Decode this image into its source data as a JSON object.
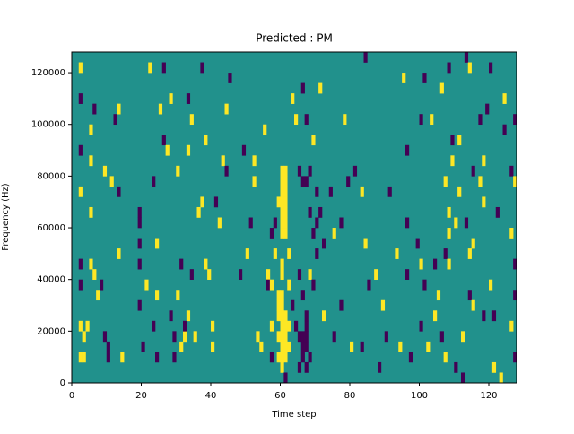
{
  "chart_data": {
    "type": "heatmap",
    "title": "Predicted : PM",
    "x_label": "Time step",
    "y_label": "Frequency (Hz)",
    "xlim": [
      0,
      128
    ],
    "ylim": [
      0,
      128000
    ],
    "xticks": [
      0,
      20,
      40,
      60,
      80,
      100,
      120
    ],
    "yticks": [
      0,
      20000,
      40000,
      60000,
      80000,
      100000,
      120000
    ],
    "clim": [
      -1,
      1
    ],
    "cmap": [
      "#440154",
      "#21918c",
      "#fde725"
    ],
    "background": 0,
    "cell_width": 1,
    "cell_height": 4000,
    "cells": [
      [
        2,
        120000,
        1
      ],
      [
        2,
        108000,
        -1
      ],
      [
        2,
        88000,
        -1
      ],
      [
        2,
        72000,
        1
      ],
      [
        2,
        44000,
        -1
      ],
      [
        2,
        36000,
        -1
      ],
      [
        2,
        20000,
        1
      ],
      [
        2,
        8000,
        1
      ],
      [
        3,
        8000,
        1
      ],
      [
        3,
        16000,
        1
      ],
      [
        4,
        20000,
        1
      ],
      [
        5,
        44000,
        1
      ],
      [
        5,
        84000,
        1
      ],
      [
        5,
        64000,
        1
      ],
      [
        5,
        96000,
        1
      ],
      [
        6,
        104000,
        -1
      ],
      [
        6,
        40000,
        1
      ],
      [
        7,
        32000,
        1
      ],
      [
        8,
        36000,
        -1
      ],
      [
        9,
        16000,
        -1
      ],
      [
        9,
        80000,
        1
      ],
      [
        10,
        8000,
        -1
      ],
      [
        10,
        12000,
        -1
      ],
      [
        11,
        76000,
        1
      ],
      [
        12,
        100000,
        -1
      ],
      [
        13,
        104000,
        1
      ],
      [
        13,
        72000,
        -1
      ],
      [
        13,
        48000,
        1
      ],
      [
        14,
        8000,
        1
      ],
      [
        19,
        64000,
        -1
      ],
      [
        19,
        60000,
        -1
      ],
      [
        19,
        52000,
        -1
      ],
      [
        19,
        44000,
        -1
      ],
      [
        19,
        28000,
        -1
      ],
      [
        20,
        12000,
        -1
      ],
      [
        21,
        36000,
        1
      ],
      [
        22,
        120000,
        1
      ],
      [
        23,
        20000,
        -1
      ],
      [
        23,
        76000,
        -1
      ],
      [
        24,
        52000,
        1
      ],
      [
        24,
        32000,
        1
      ],
      [
        24,
        8000,
        -1
      ],
      [
        25,
        104000,
        1
      ],
      [
        26,
        120000,
        -1
      ],
      [
        26,
        92000,
        -1
      ],
      [
        27,
        88000,
        1
      ],
      [
        28,
        24000,
        -1
      ],
      [
        28,
        108000,
        1
      ],
      [
        29,
        16000,
        -1
      ],
      [
        29,
        8000,
        -1
      ],
      [
        30,
        32000,
        1
      ],
      [
        30,
        80000,
        1
      ],
      [
        31,
        44000,
        -1
      ],
      [
        31,
        12000,
        1
      ],
      [
        32,
        16000,
        1
      ],
      [
        32,
        20000,
        -1
      ],
      [
        33,
        108000,
        -1
      ],
      [
        33,
        88000,
        1
      ],
      [
        33,
        24000,
        1
      ],
      [
        34,
        40000,
        -1
      ],
      [
        34,
        100000,
        1
      ],
      [
        35,
        16000,
        1
      ],
      [
        36,
        64000,
        1
      ],
      [
        37,
        68000,
        1
      ],
      [
        37,
        120000,
        -1
      ],
      [
        38,
        92000,
        1
      ],
      [
        38,
        44000,
        1
      ],
      [
        39,
        40000,
        1
      ],
      [
        40,
        20000,
        1
      ],
      [
        40,
        12000,
        1
      ],
      [
        41,
        68000,
        -1
      ],
      [
        42,
        60000,
        1
      ],
      [
        43,
        84000,
        1
      ],
      [
        44,
        80000,
        -1
      ],
      [
        44,
        104000,
        1
      ],
      [
        45,
        116000,
        -1
      ],
      [
        48,
        40000,
        -1
      ],
      [
        49,
        88000,
        -1
      ],
      [
        50,
        48000,
        1
      ],
      [
        51,
        60000,
        -1
      ],
      [
        52,
        84000,
        1
      ],
      [
        52,
        76000,
        1
      ],
      [
        53,
        16000,
        1
      ],
      [
        54,
        12000,
        1
      ],
      [
        55,
        96000,
        1
      ],
      [
        56,
        40000,
        1
      ],
      [
        56,
        36000,
        -1
      ],
      [
        57,
        8000,
        -1
      ],
      [
        57,
        56000,
        -1
      ],
      [
        57,
        36000,
        1
      ],
      [
        57,
        20000,
        1
      ],
      [
        58,
        60000,
        -1
      ],
      [
        58,
        48000,
        1
      ],
      [
        59,
        16000,
        1
      ],
      [
        59,
        8000,
        1
      ],
      [
        59,
        24000,
        1
      ],
      [
        59,
        28000,
        1
      ],
      [
        59,
        32000,
        1
      ],
      [
        59,
        68000,
        1
      ],
      [
        60,
        4000,
        1
      ],
      [
        60,
        8000,
        1
      ],
      [
        60,
        12000,
        1
      ],
      [
        60,
        16000,
        1
      ],
      [
        60,
        20000,
        1
      ],
      [
        60,
        24000,
        1
      ],
      [
        60,
        28000,
        1
      ],
      [
        60,
        32000,
        1
      ],
      [
        60,
        40000,
        1
      ],
      [
        60,
        44000,
        1
      ],
      [
        60,
        56000,
        1
      ],
      [
        60,
        60000,
        1
      ],
      [
        60,
        64000,
        1
      ],
      [
        60,
        68000,
        1
      ],
      [
        60,
        72000,
        1
      ],
      [
        60,
        76000,
        1
      ],
      [
        60,
        80000,
        1
      ],
      [
        61,
        0,
        -1
      ],
      [
        61,
        8000,
        1
      ],
      [
        61,
        12000,
        1
      ],
      [
        61,
        16000,
        1
      ],
      [
        61,
        20000,
        1
      ],
      [
        61,
        24000,
        1
      ],
      [
        61,
        56000,
        1
      ],
      [
        61,
        60000,
        1
      ],
      [
        61,
        64000,
        1
      ],
      [
        61,
        68000,
        1
      ],
      [
        61,
        72000,
        1
      ],
      [
        61,
        76000,
        1
      ],
      [
        61,
        80000,
        1
      ],
      [
        62,
        12000,
        1
      ],
      [
        62,
        20000,
        1
      ],
      [
        62,
        48000,
        1
      ],
      [
        62,
        36000,
        1
      ],
      [
        63,
        108000,
        1
      ],
      [
        63,
        28000,
        -1
      ],
      [
        64,
        100000,
        1
      ],
      [
        64,
        20000,
        -1
      ],
      [
        65,
        16000,
        -1
      ],
      [
        65,
        4000,
        -1
      ],
      [
        65,
        40000,
        -1
      ],
      [
        65,
        80000,
        -1
      ],
      [
        66,
        12000,
        -1
      ],
      [
        66,
        8000,
        -1
      ],
      [
        66,
        16000,
        -1
      ],
      [
        66,
        32000,
        -1
      ],
      [
        66,
        76000,
        -1
      ],
      [
        66,
        112000,
        -1
      ],
      [
        67,
        4000,
        -1
      ],
      [
        67,
        12000,
        -1
      ],
      [
        67,
        16000,
        -1
      ],
      [
        67,
        20000,
        -1
      ],
      [
        67,
        24000,
        -1
      ],
      [
        67,
        76000,
        -1
      ],
      [
        67,
        100000,
        -1
      ],
      [
        68,
        8000,
        -1
      ],
      [
        68,
        40000,
        1
      ],
      [
        68,
        64000,
        -1
      ],
      [
        68,
        80000,
        -1
      ],
      [
        69,
        36000,
        -1
      ],
      [
        69,
        92000,
        1
      ],
      [
        69,
        56000,
        -1
      ],
      [
        70,
        48000,
        -1
      ],
      [
        70,
        60000,
        -1
      ],
      [
        70,
        72000,
        -1
      ],
      [
        71,
        112000,
        1
      ],
      [
        71,
        64000,
        -1
      ],
      [
        72,
        24000,
        1
      ],
      [
        72,
        52000,
        -1
      ],
      [
        74,
        72000,
        -1
      ],
      [
        75,
        16000,
        -1
      ],
      [
        75,
        56000,
        1
      ],
      [
        77,
        28000,
        -1
      ],
      [
        77,
        60000,
        -1
      ],
      [
        78,
        100000,
        1
      ],
      [
        79,
        76000,
        -1
      ],
      [
        80,
        12000,
        1
      ],
      [
        81,
        80000,
        -1
      ],
      [
        83,
        72000,
        1
      ],
      [
        83,
        12000,
        -1
      ],
      [
        84,
        124000,
        -1
      ],
      [
        84,
        52000,
        1
      ],
      [
        85,
        36000,
        -1
      ],
      [
        87,
        40000,
        1
      ],
      [
        88,
        4000,
        -1
      ],
      [
        89,
        28000,
        1
      ],
      [
        90,
        16000,
        -1
      ],
      [
        91,
        72000,
        -1
      ],
      [
        93,
        48000,
        1
      ],
      [
        94,
        12000,
        1
      ],
      [
        95,
        116000,
        1
      ],
      [
        96,
        40000,
        -1
      ],
      [
        96,
        88000,
        -1
      ],
      [
        96,
        60000,
        -1
      ],
      [
        97,
        8000,
        -1
      ],
      [
        99,
        52000,
        -1
      ],
      [
        100,
        44000,
        1
      ],
      [
        100,
        20000,
        -1
      ],
      [
        100,
        100000,
        -1
      ],
      [
        101,
        36000,
        -1
      ],
      [
        101,
        116000,
        -1
      ],
      [
        102,
        12000,
        1
      ],
      [
        103,
        100000,
        1
      ],
      [
        104,
        44000,
        -1
      ],
      [
        104,
        24000,
        1
      ],
      [
        105,
        32000,
        1
      ],
      [
        106,
        112000,
        1
      ],
      [
        106,
        16000,
        -1
      ],
      [
        107,
        8000,
        1
      ],
      [
        107,
        48000,
        -1
      ],
      [
        107,
        76000,
        1
      ],
      [
        108,
        56000,
        1
      ],
      [
        108,
        64000,
        1
      ],
      [
        108,
        44000,
        1
      ],
      [
        108,
        120000,
        -1
      ],
      [
        109,
        92000,
        -1
      ],
      [
        109,
        84000,
        1
      ],
      [
        110,
        60000,
        1
      ],
      [
        110,
        4000,
        -1
      ],
      [
        111,
        92000,
        1
      ],
      [
        111,
        72000,
        1
      ],
      [
        112,
        16000,
        1
      ],
      [
        112,
        0,
        -1
      ],
      [
        113,
        60000,
        -1
      ],
      [
        113,
        124000,
        -1
      ],
      [
        114,
        48000,
        1
      ],
      [
        114,
        32000,
        -1
      ],
      [
        114,
        120000,
        1
      ],
      [
        115,
        80000,
        -1
      ],
      [
        115,
        52000,
        1
      ],
      [
        115,
        28000,
        1
      ],
      [
        117,
        76000,
        1
      ],
      [
        117,
        100000,
        -1
      ],
      [
        118,
        24000,
        -1
      ],
      [
        118,
        68000,
        1
      ],
      [
        118,
        84000,
        1
      ],
      [
        119,
        104000,
        -1
      ],
      [
        120,
        120000,
        -1
      ],
      [
        120,
        36000,
        1
      ],
      [
        121,
        4000,
        1
      ],
      [
        121,
        24000,
        -1
      ],
      [
        122,
        64000,
        -1
      ],
      [
        123,
        0,
        1
      ],
      [
        124,
        96000,
        -1
      ],
      [
        124,
        108000,
        1
      ],
      [
        126,
        20000,
        1
      ],
      [
        126,
        56000,
        1
      ],
      [
        126,
        80000,
        -1
      ],
      [
        127,
        76000,
        1
      ],
      [
        127,
        32000,
        -1
      ],
      [
        127,
        44000,
        -1
      ],
      [
        127,
        100000,
        -1
      ],
      [
        127,
        8000,
        -1
      ]
    ]
  }
}
